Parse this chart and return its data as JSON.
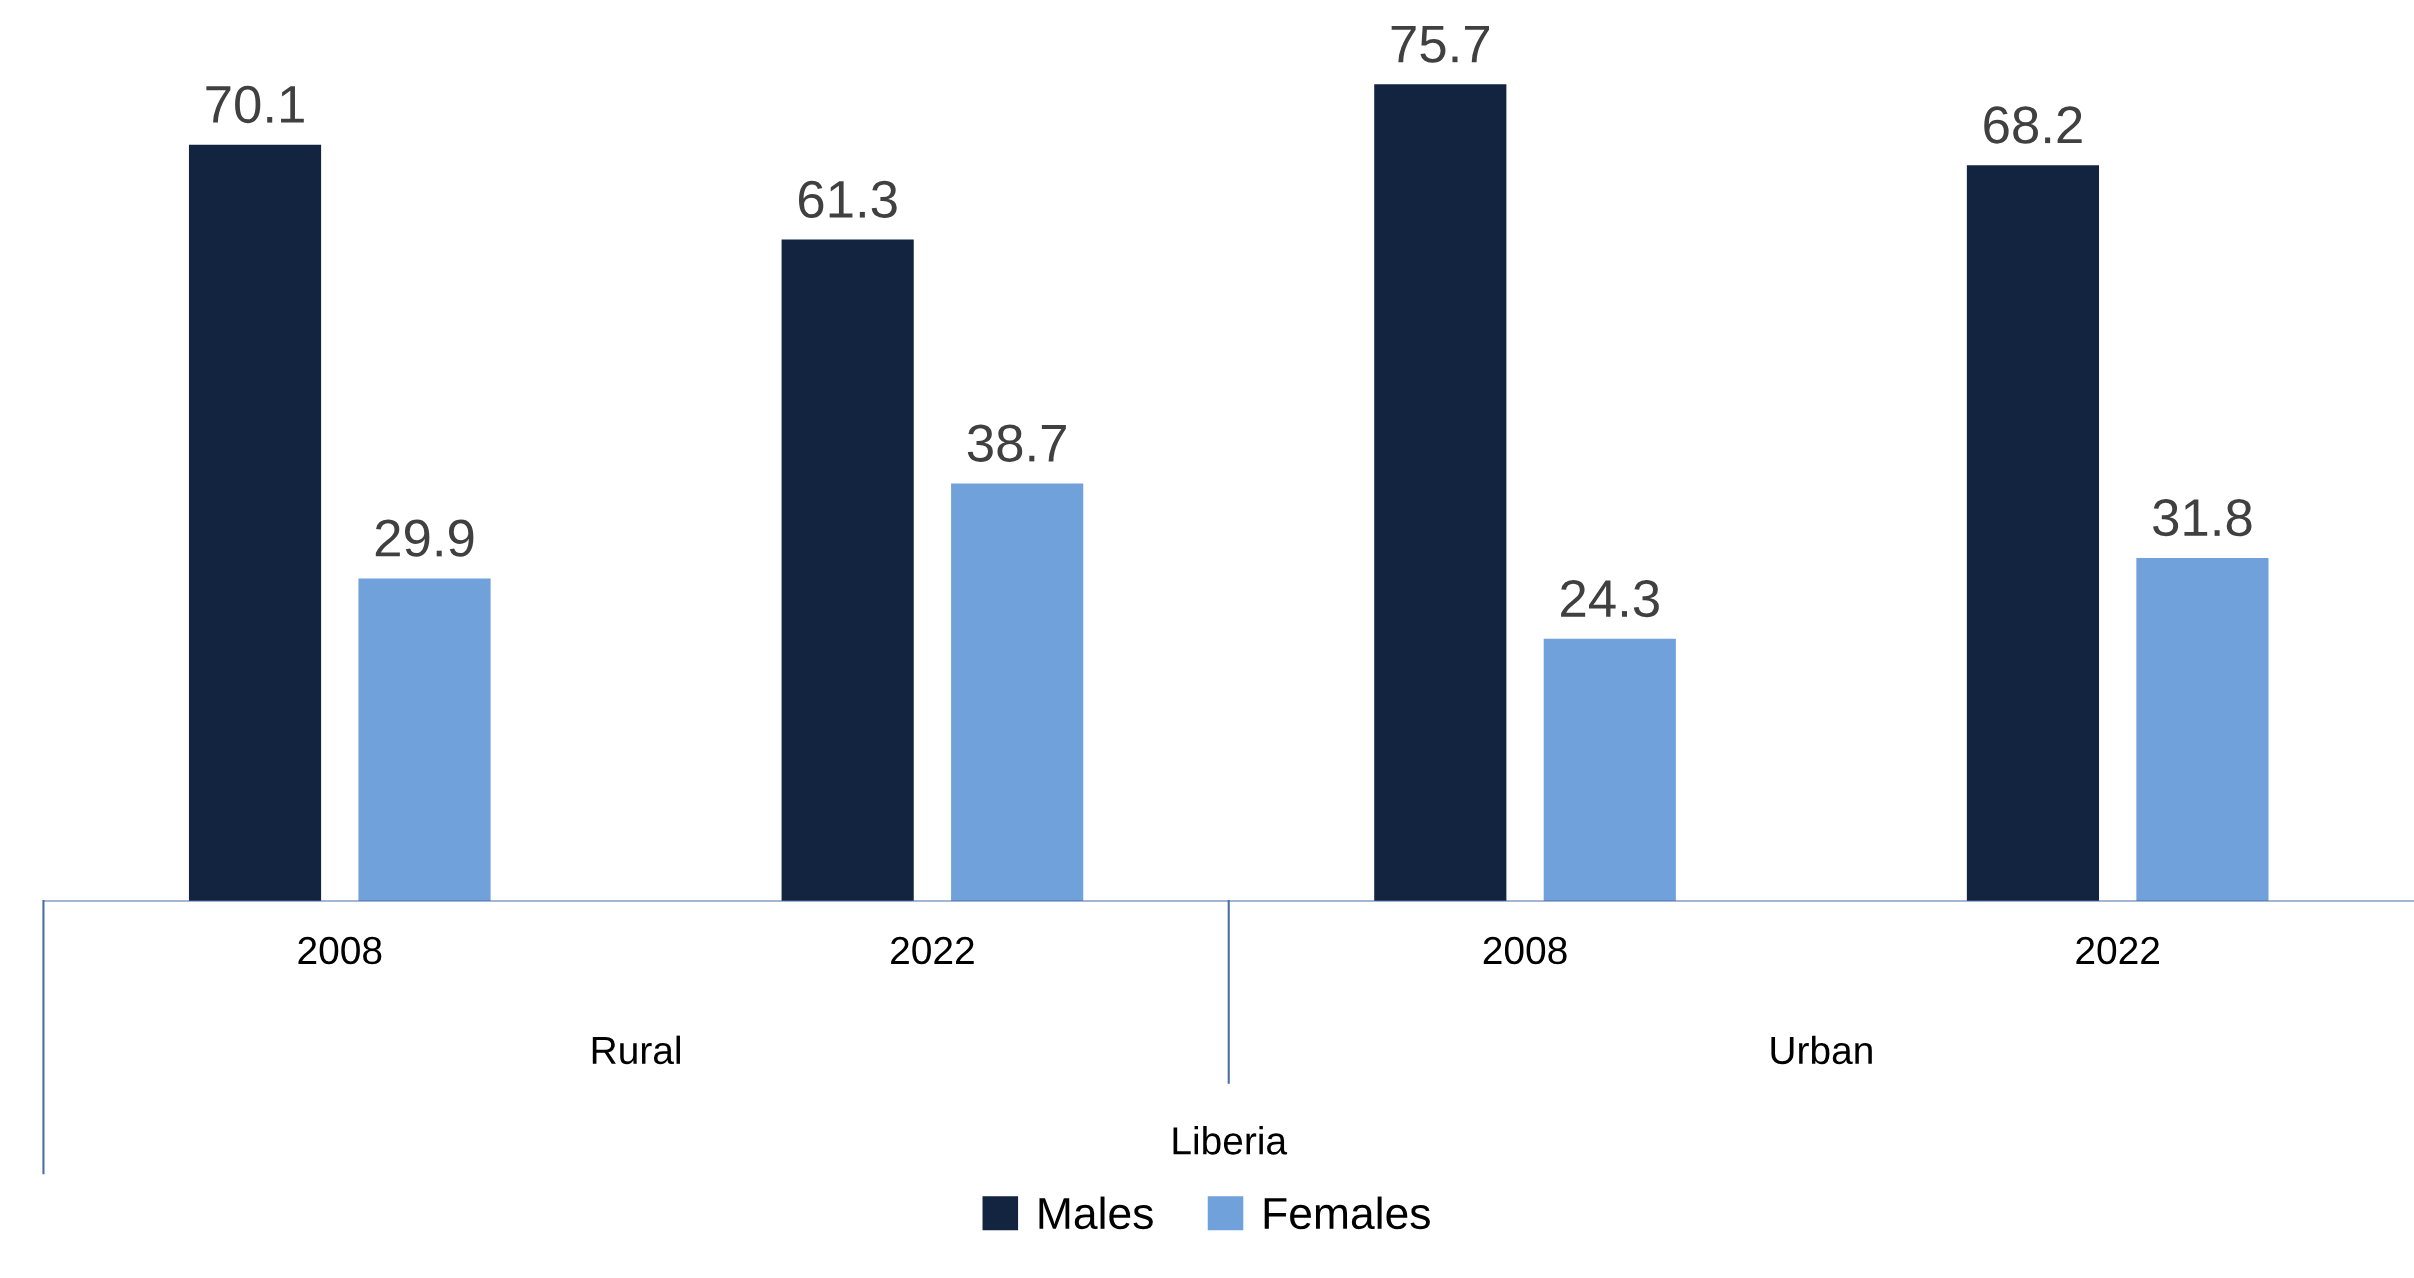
{
  "chart_data": {
    "type": "bar",
    "categories": [
      "2008",
      "2022",
      "2008",
      "2022"
    ],
    "series": [
      {
        "name": "Males",
        "color": "#12243f",
        "values": [
          70.1,
          61.3,
          75.7,
          68.2
        ]
      },
      {
        "name": "Females",
        "color": "#70a1da",
        "values": [
          29.9,
          38.7,
          24.3,
          31.8
        ]
      }
    ],
    "data_labels": true,
    "legend": "bottom",
    "grid": false,
    "annotations": [
      "Rural",
      "Urban",
      "Liberia"
    ]
  }
}
